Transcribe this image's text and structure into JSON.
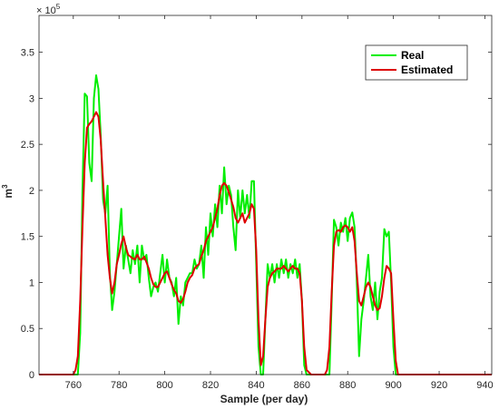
{
  "chart_data": {
    "type": "line",
    "xlabel": "Sample (per day)",
    "ylabel": "m",
    "ylabel_superscript": "3",
    "y_multiplier": "× 10",
    "y_multiplier_exp": "5",
    "xlim": [
      745,
      943
    ],
    "ylim": [
      0,
      3.9
    ],
    "y_scale": 100000,
    "xticks": [
      760,
      780,
      800,
      820,
      840,
      860,
      880,
      900,
      920,
      940
    ],
    "yticks": [
      0,
      0.5,
      1,
      1.5,
      2,
      2.5,
      3,
      3.5
    ],
    "grid": false,
    "legend_position": "top-right",
    "series": [
      {
        "name": "Real",
        "color": "#00ee00",
        "points": [
          [
            745,
            0
          ],
          [
            760,
            0
          ],
          [
            762,
            0
          ],
          [
            763,
            0.45
          ],
          [
            764,
            2.0
          ],
          [
            765,
            3.05
          ],
          [
            766,
            3.02
          ],
          [
            767,
            2.3
          ],
          [
            768,
            2.1
          ],
          [
            769,
            3.0
          ],
          [
            770,
            3.25
          ],
          [
            771,
            3.1
          ],
          [
            772,
            2.6
          ],
          [
            773,
            1.9
          ],
          [
            774,
            1.75
          ],
          [
            775,
            2.05
          ],
          [
            776,
            1.1
          ],
          [
            777,
            0.7
          ],
          [
            778,
            0.9
          ],
          [
            779,
            1.2
          ],
          [
            780,
            1.5
          ],
          [
            781,
            1.8
          ],
          [
            782,
            1.15
          ],
          [
            783,
            1.4
          ],
          [
            784,
            1.25
          ],
          [
            785,
            1.1
          ],
          [
            786,
            1.35
          ],
          [
            787,
            1.2
          ],
          [
            788,
            1.4
          ],
          [
            789,
            1.0
          ],
          [
            790,
            1.4
          ],
          [
            791,
            1.25
          ],
          [
            792,
            1.3
          ],
          [
            793,
            1.05
          ],
          [
            794,
            0.85
          ],
          [
            795,
            0.95
          ],
          [
            796,
            1.0
          ],
          [
            797,
            0.9
          ],
          [
            798,
            1.1
          ],
          [
            799,
            1.3
          ],
          [
            800,
            1.0
          ],
          [
            801,
            1.25
          ],
          [
            802,
            1.05
          ],
          [
            803,
            1.0
          ],
          [
            804,
            0.85
          ],
          [
            805,
            1.05
          ],
          [
            806,
            0.55
          ],
          [
            807,
            0.85
          ],
          [
            808,
            0.75
          ],
          [
            809,
            1.0
          ],
          [
            810,
            1.05
          ],
          [
            811,
            1.1
          ],
          [
            812,
            1.1
          ],
          [
            813,
            1.25
          ],
          [
            814,
            1.15
          ],
          [
            815,
            1.2
          ],
          [
            816,
            1.4
          ],
          [
            817,
            1.05
          ],
          [
            818,
            1.6
          ],
          [
            819,
            1.3
          ],
          [
            820,
            1.75
          ],
          [
            821,
            1.5
          ],
          [
            822,
            1.85
          ],
          [
            823,
            1.6
          ],
          [
            824,
            2.05
          ],
          [
            825,
            1.75
          ],
          [
            826,
            2.25
          ],
          [
            827,
            1.85
          ],
          [
            828,
            2.05
          ],
          [
            829,
            1.95
          ],
          [
            830,
            1.6
          ],
          [
            831,
            1.35
          ],
          [
            832,
            2.0
          ],
          [
            833,
            1.7
          ],
          [
            834,
            2.0
          ],
          [
            835,
            1.75
          ],
          [
            836,
            1.95
          ],
          [
            837,
            1.7
          ],
          [
            838,
            2.1
          ],
          [
            839,
            2.1
          ],
          [
            840,
            1.2
          ],
          [
            841,
            0.3
          ],
          [
            842,
            0.0
          ],
          [
            843,
            0.0
          ],
          [
            844,
            0.6
          ],
          [
            845,
            1.2
          ],
          [
            846,
            1.05
          ],
          [
            847,
            1.2
          ],
          [
            848,
            1.0
          ],
          [
            849,
            1.2
          ],
          [
            850,
            1.05
          ],
          [
            851,
            1.25
          ],
          [
            852,
            1.1
          ],
          [
            853,
            1.25
          ],
          [
            854,
            1.05
          ],
          [
            855,
            1.2
          ],
          [
            856,
            1.1
          ],
          [
            857,
            1.25
          ],
          [
            858,
            1.05
          ],
          [
            859,
            1.2
          ],
          [
            860,
            0.8
          ],
          [
            861,
            0.1
          ],
          [
            862,
            0.0
          ],
          [
            870,
            0.0
          ],
          [
            872,
            0.0
          ],
          [
            873,
            0.8
          ],
          [
            874,
            1.68
          ],
          [
            875,
            1.6
          ],
          [
            876,
            1.4
          ],
          [
            877,
            1.65
          ],
          [
            878,
            1.55
          ],
          [
            879,
            1.7
          ],
          [
            880,
            1.45
          ],
          [
            881,
            1.7
          ],
          [
            882,
            1.76
          ],
          [
            883,
            1.6
          ],
          [
            884,
            1.0
          ],
          [
            885,
            0.2
          ],
          [
            886,
            0.6
          ],
          [
            887,
            0.8
          ],
          [
            888,
            1.05
          ],
          [
            889,
            1.3
          ],
          [
            890,
            0.85
          ],
          [
            891,
            0.7
          ],
          [
            892,
            1.0
          ],
          [
            893,
            0.6
          ],
          [
            894,
            0.9
          ],
          [
            895,
            1.05
          ],
          [
            896,
            1.58
          ],
          [
            897,
            1.5
          ],
          [
            898,
            1.55
          ],
          [
            899,
            1.0
          ],
          [
            900,
            0.3
          ],
          [
            901,
            0.0
          ],
          [
            943,
            0
          ]
        ]
      },
      {
        "name": "Estimated",
        "color": "#dd0000",
        "points": [
          [
            745,
            0
          ],
          [
            760,
            0
          ],
          [
            761,
            0.05
          ],
          [
            762,
            0.2
          ],
          [
            763,
            0.8
          ],
          [
            764,
            1.6
          ],
          [
            765,
            2.3
          ],
          [
            766,
            2.68
          ],
          [
            767,
            2.72
          ],
          [
            768,
            2.75
          ],
          [
            769,
            2.8
          ],
          [
            770,
            2.85
          ],
          [
            771,
            2.8
          ],
          [
            772,
            2.55
          ],
          [
            773,
            2.1
          ],
          [
            774,
            1.7
          ],
          [
            775,
            1.3
          ],
          [
            776,
            1.05
          ],
          [
            777,
            0.88
          ],
          [
            778,
            1.0
          ],
          [
            779,
            1.2
          ],
          [
            780,
            1.3
          ],
          [
            781,
            1.42
          ],
          [
            782,
            1.5
          ],
          [
            783,
            1.38
          ],
          [
            784,
            1.3
          ],
          [
            785,
            1.28
          ],
          [
            786,
            1.26
          ],
          [
            787,
            1.25
          ],
          [
            788,
            1.3
          ],
          [
            789,
            1.25
          ],
          [
            790,
            1.25
          ],
          [
            791,
            1.28
          ],
          [
            792,
            1.22
          ],
          [
            793,
            1.15
          ],
          [
            794,
            1.05
          ],
          [
            795,
            0.98
          ],
          [
            796,
            0.95
          ],
          [
            797,
            0.95
          ],
          [
            798,
            1.0
          ],
          [
            799,
            1.05
          ],
          [
            800,
            1.1
          ],
          [
            801,
            1.12
          ],
          [
            802,
            1.05
          ],
          [
            803,
            0.98
          ],
          [
            804,
            0.92
          ],
          [
            805,
            0.88
          ],
          [
            806,
            0.8
          ],
          [
            807,
            0.78
          ],
          [
            808,
            0.82
          ],
          [
            809,
            0.9
          ],
          [
            810,
            1.0
          ],
          [
            811,
            1.05
          ],
          [
            812,
            1.08
          ],
          [
            813,
            1.15
          ],
          [
            814,
            1.18
          ],
          [
            815,
            1.2
          ],
          [
            816,
            1.28
          ],
          [
            817,
            1.35
          ],
          [
            818,
            1.45
          ],
          [
            819,
            1.5
          ],
          [
            820,
            1.55
          ],
          [
            821,
            1.6
          ],
          [
            822,
            1.7
          ],
          [
            823,
            1.8
          ],
          [
            824,
            1.95
          ],
          [
            825,
            2.05
          ],
          [
            826,
            2.08
          ],
          [
            827,
            2.05
          ],
          [
            828,
            1.98
          ],
          [
            829,
            1.9
          ],
          [
            830,
            1.82
          ],
          [
            831,
            1.7
          ],
          [
            832,
            1.65
          ],
          [
            833,
            1.7
          ],
          [
            834,
            1.75
          ],
          [
            835,
            1.65
          ],
          [
            836,
            1.7
          ],
          [
            837,
            1.75
          ],
          [
            838,
            1.85
          ],
          [
            839,
            1.8
          ],
          [
            840,
            1.35
          ],
          [
            841,
            0.6
          ],
          [
            842,
            0.1
          ],
          [
            843,
            0.2
          ],
          [
            844,
            0.6
          ],
          [
            845,
            0.95
          ],
          [
            846,
            1.05
          ],
          [
            847,
            1.1
          ],
          [
            848,
            1.12
          ],
          [
            849,
            1.15
          ],
          [
            850,
            1.15
          ],
          [
            851,
            1.15
          ],
          [
            852,
            1.18
          ],
          [
            853,
            1.15
          ],
          [
            854,
            1.12
          ],
          [
            855,
            1.15
          ],
          [
            856,
            1.18
          ],
          [
            857,
            1.15
          ],
          [
            858,
            1.15
          ],
          [
            859,
            1.1
          ],
          [
            860,
            0.8
          ],
          [
            861,
            0.3
          ],
          [
            862,
            0.05
          ],
          [
            864,
            0.0
          ],
          [
            870,
            0.0
          ],
          [
            871,
            0.05
          ],
          [
            872,
            0.3
          ],
          [
            873,
            0.9
          ],
          [
            874,
            1.4
          ],
          [
            875,
            1.55
          ],
          [
            876,
            1.57
          ],
          [
            877,
            1.55
          ],
          [
            878,
            1.6
          ],
          [
            879,
            1.62
          ],
          [
            880,
            1.6
          ],
          [
            881,
            1.55
          ],
          [
            882,
            1.6
          ],
          [
            883,
            1.45
          ],
          [
            884,
            1.1
          ],
          [
            885,
            0.8
          ],
          [
            886,
            0.75
          ],
          [
            887,
            0.85
          ],
          [
            888,
            0.95
          ],
          [
            889,
            1.0
          ],
          [
            890,
            0.95
          ],
          [
            891,
            0.85
          ],
          [
            892,
            0.75
          ],
          [
            893,
            0.7
          ],
          [
            894,
            0.72
          ],
          [
            895,
            0.85
          ],
          [
            896,
            1.05
          ],
          [
            897,
            1.18
          ],
          [
            898,
            1.15
          ],
          [
            899,
            1.1
          ],
          [
            900,
            0.6
          ],
          [
            901,
            0.15
          ],
          [
            902,
            0.0
          ],
          [
            943,
            0
          ]
        ]
      }
    ]
  }
}
